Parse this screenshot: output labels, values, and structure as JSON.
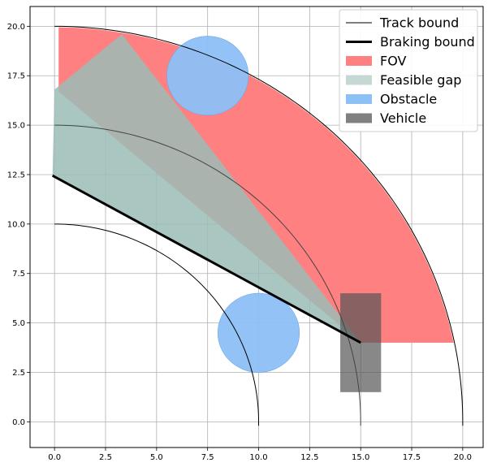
{
  "chart_data": {
    "type": "area",
    "xlim": [
      -1.2,
      21.0
    ],
    "ylim": [
      -1.3,
      21.0
    ],
    "xticks": [
      {
        "value": 0.0,
        "label": "0.0"
      },
      {
        "value": 2.5,
        "label": "2.5"
      },
      {
        "value": 5.0,
        "label": "5.0"
      },
      {
        "value": 7.5,
        "label": "7.5"
      },
      {
        "value": 10.0,
        "label": "10.0"
      },
      {
        "value": 12.5,
        "label": "12.5"
      },
      {
        "value": 15.0,
        "label": "15.0"
      },
      {
        "value": 17.5,
        "label": "17.5"
      },
      {
        "value": 20.0,
        "label": "20.0"
      }
    ],
    "yticks": [
      {
        "value": 0.0,
        "label": "0.0"
      },
      {
        "value": 2.5,
        "label": "2.5"
      },
      {
        "value": 5.0,
        "label": "5.0"
      },
      {
        "value": 7.5,
        "label": "7.5"
      },
      {
        "value": 10.0,
        "label": "10.0"
      },
      {
        "value": 12.5,
        "label": "12.5"
      },
      {
        "value": 15.0,
        "label": "15.0"
      },
      {
        "value": 17.5,
        "label": "17.5"
      },
      {
        "value": 20.0,
        "label": "20.0"
      }
    ],
    "grid": true,
    "legend_position": "top-right",
    "track_bounds": {
      "center": [
        0,
        0
      ],
      "outer_radius": 20,
      "middle_radius": 15,
      "inner_radius": 10
    },
    "fov": {
      "points": [
        [
          0.2,
          20.0
        ],
        [
          3.3,
          19.6
        ],
        [
          19.6,
          4.0
        ],
        [
          12.0,
          4.0
        ],
        [
          15.0,
          4.0
        ],
        [
          0.2,
          16.7
        ]
      ]
    },
    "feasible_gap": {
      "points": [
        [
          -0.1,
          12.4
        ],
        [
          0.0,
          16.8
        ],
        [
          3.3,
          19.6
        ],
        [
          15.0,
          4.0
        ]
      ]
    },
    "braking_bound": {
      "points": [
        [
          -0.1,
          12.45
        ],
        [
          15.0,
          4.0
        ]
      ]
    },
    "obstacles": [
      {
        "center": [
          7.5,
          17.5
        ],
        "radius": 2.0
      },
      {
        "center": [
          10.0,
          4.5
        ],
        "radius": 2.0
      }
    ],
    "vehicle": {
      "x0": 14.0,
      "x1": 16.0,
      "y0": 1.5,
      "y1": 6.5
    },
    "legend": [
      {
        "label": "Track bound",
        "kind": "line",
        "color": "#555555"
      },
      {
        "label": "Braking bound",
        "kind": "line-thick",
        "color": "#000000"
      },
      {
        "label": "FOV",
        "kind": "patch",
        "color": "#ff8080"
      },
      {
        "label": "Feasible gap",
        "kind": "patch",
        "color": "#c5d8d4"
      },
      {
        "label": "Obstacle",
        "kind": "patch",
        "color": "#8dc0f5"
      },
      {
        "label": "Vehicle",
        "kind": "patch",
        "color": "#808080"
      }
    ]
  }
}
